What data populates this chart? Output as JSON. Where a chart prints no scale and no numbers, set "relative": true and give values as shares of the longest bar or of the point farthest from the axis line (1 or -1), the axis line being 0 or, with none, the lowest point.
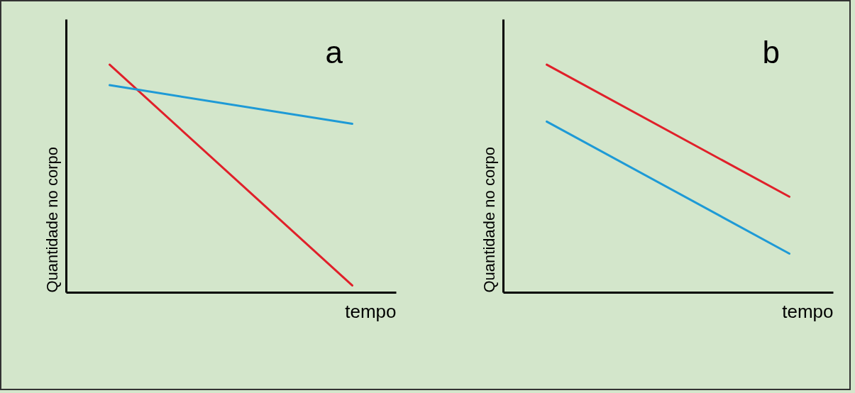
{
  "chart_data": [
    {
      "type": "line",
      "title": "a",
      "xlabel": "tempo",
      "ylabel": "Quantidade no corpo",
      "relative": true,
      "legend": false,
      "categories": [
        null,
        null
      ],
      "series": [
        {
          "color": "#e0202a",
          "values": [
            1,
            0.03
          ]
        },
        {
          "color": "#1e9ad6",
          "values": [
            0.91,
            0.74
          ]
        }
      ]
    },
    {
      "type": "line",
      "title": "b",
      "xlabel": "tempo",
      "ylabel": "Quantidade no corpo",
      "relative": true,
      "legend": false,
      "categories": [
        null,
        null
      ],
      "series": [
        {
          "color": "#e0202a",
          "values": [
            1,
            0.42
          ]
        },
        {
          "color": "#1e9ad6",
          "values": [
            0.75,
            0.17
          ]
        }
      ]
    }
  ]
}
